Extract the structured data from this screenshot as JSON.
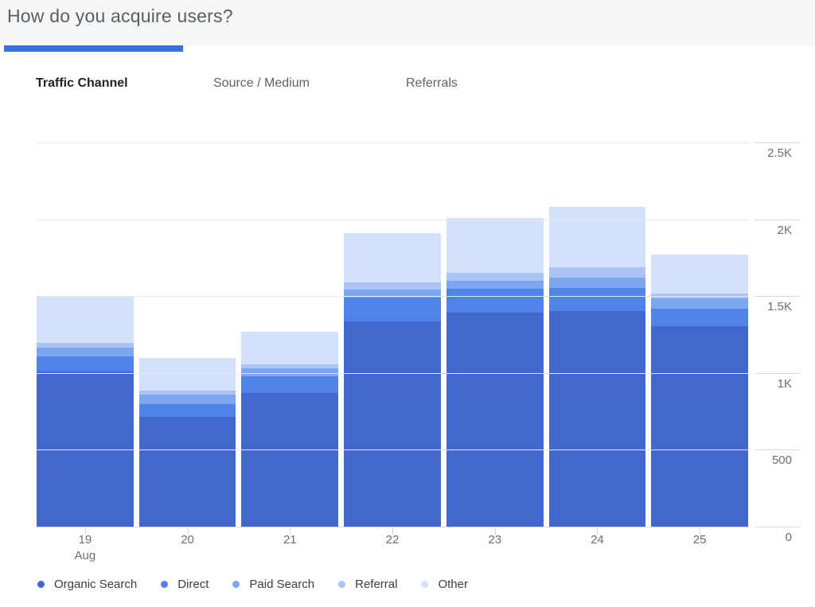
{
  "header": {
    "title": "How do you acquire users?"
  },
  "tabs": [
    {
      "label": "Traffic Channel",
      "active": true
    },
    {
      "label": "Source / Medium",
      "active": false
    },
    {
      "label": "Referrals",
      "active": false
    }
  ],
  "colors": {
    "accent": "#3b70e3",
    "header_background": "#f5f6f8",
    "gridline": "#e6e7ea",
    "axis_text": "#6a6e73"
  },
  "chart_data": {
    "type": "bar",
    "stacked": true,
    "title": "",
    "xlabel": "",
    "ylabel": "",
    "categories": [
      "19",
      "20",
      "21",
      "22",
      "23",
      "24",
      "25"
    ],
    "x_month_label": {
      "index": 0,
      "text": "Aug"
    },
    "series": [
      {
        "name": "Organic Search",
        "color": "#4168cd",
        "values": [
          1010,
          715,
          870,
          1335,
          1395,
          1405,
          1305
        ]
      },
      {
        "name": "Direct",
        "color": "#5083e8",
        "values": [
          100,
          80,
          110,
          155,
          155,
          150,
          115
        ]
      },
      {
        "name": "Paid Search",
        "color": "#7ea6f0",
        "values": [
          55,
          65,
          50,
          50,
          50,
          65,
          65
        ]
      },
      {
        "name": "Referral",
        "color": "#aac4f5",
        "values": [
          30,
          25,
          25,
          50,
          50,
          70,
          30
        ]
      },
      {
        "name": "Other",
        "color": "#d3e1fb",
        "values": [
          305,
          215,
          215,
          320,
          360,
          390,
          255
        ]
      }
    ],
    "totals": [
      1500,
      1100,
      1270,
      1910,
      2010,
      2080,
      1770
    ],
    "ylim": [
      0,
      2500
    ],
    "y_ticks": [
      {
        "value": 0,
        "label": "0"
      },
      {
        "value": 500,
        "label": "500"
      },
      {
        "value": 1000,
        "label": "1K"
      },
      {
        "value": 1500,
        "label": "1.5K"
      },
      {
        "value": 2000,
        "label": "2K"
      },
      {
        "value": 2500,
        "label": "2.5K"
      }
    ],
    "grid": true,
    "legend_position": "bottom"
  }
}
